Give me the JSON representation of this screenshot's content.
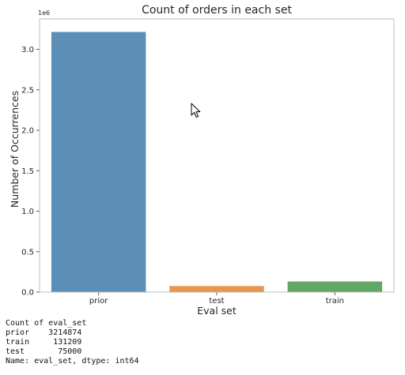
{
  "chart_data": {
    "type": "bar",
    "title": "Count of orders in each set",
    "xlabel": "Eval set",
    "ylabel": "Number of Occurrences",
    "categories": [
      "prior",
      "test",
      "train"
    ],
    "values": [
      3214874,
      75000,
      131209
    ],
    "colors": [
      "#5b8fb8",
      "#e9954f",
      "#62a763"
    ],
    "ylim": [
      0,
      3375617
    ],
    "yticks": [
      0,
      500000,
      1000000,
      1500000,
      2000000,
      2500000,
      3000000
    ],
    "ytick_labels": [
      "0.0",
      "0.5",
      "1.0",
      "1.5",
      "2.0",
      "2.5",
      "3.0"
    ],
    "offset_label": "1e6",
    "grid": false
  },
  "output": {
    "lines": [
      "Count of eval_set",
      "prior    3214874",
      "train     131209",
      "test       75000",
      "Name: eval_set, dtype: int64"
    ]
  },
  "cursor_icon": "mouse-pointer-icon"
}
